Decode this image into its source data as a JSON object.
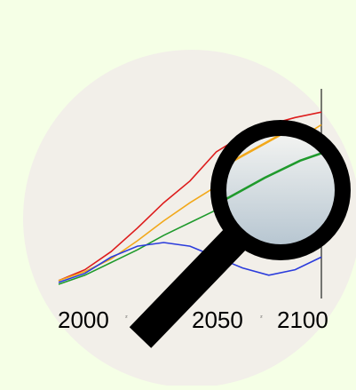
{
  "icon": {
    "name": "magnifier-over-chart-icon",
    "colors": {
      "page_background": "#f5ffe6",
      "disc": "#f2efe9",
      "lens_tint": "#b9c8d3",
      "handle": "#000000",
      "series_red": "#dd1c1c",
      "series_orange": "#f2a81a",
      "series_green": "#1f9a2c",
      "series_blue": "#2b3cdc"
    }
  },
  "chart_data": {
    "type": "line",
    "title": "",
    "xlabel": "",
    "ylabel": "",
    "x_ticks": [
      "2000",
      "2050",
      "2100"
    ],
    "minor_marks": [
      "₂",
      "₂"
    ],
    "xlim": [
      2000,
      2100
    ],
    "ylim": [
      0,
      10
    ],
    "series": [
      {
        "color": "#dd1c1c",
        "x": [
          2000,
          2010,
          2020,
          2030,
          2040,
          2050,
          2060,
          2070,
          2080,
          2090,
          2100
        ],
        "y": [
          0.3,
          0.9,
          1.9,
          3.2,
          4.6,
          5.8,
          7.4,
          8.3,
          8.9,
          9.3,
          9.6
        ]
      },
      {
        "color": "#f2a81a",
        "x": [
          2000,
          2010,
          2020,
          2030,
          2040,
          2050,
          2060,
          2070,
          2080,
          2090,
          2100
        ],
        "y": [
          0.3,
          0.8,
          1.5,
          2.5,
          3.6,
          4.6,
          5.5,
          6.4,
          7.2,
          8.0,
          8.9
        ]
      },
      {
        "color": "#1f9a2c",
        "x": [
          2000,
          2010,
          2020,
          2030,
          2040,
          2050,
          2060,
          2070,
          2080,
          2090,
          2100
        ],
        "y": [
          0.1,
          0.6,
          1.3,
          2.0,
          2.8,
          3.5,
          4.2,
          5.0,
          5.8,
          6.5,
          7.0
        ]
      },
      {
        "color": "#2b3cdc",
        "x": [
          2000,
          2010,
          2020,
          2030,
          2040,
          2050,
          2060,
          2070,
          2080,
          2090,
          2100
        ],
        "y": [
          0.2,
          0.7,
          1.6,
          2.2,
          2.4,
          2.2,
          1.6,
          1.0,
          0.6,
          0.9,
          1.6
        ]
      }
    ]
  }
}
